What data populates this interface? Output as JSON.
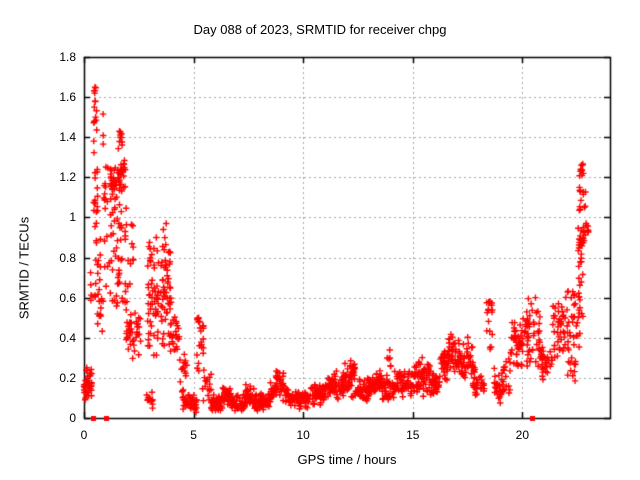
{
  "figure": {
    "background": "#ffffff",
    "border_color": "#000000"
  },
  "chart_data": {
    "type": "scatter",
    "title": "Day 088 of 2023, SRMTID for receiver chpg",
    "xlabel": "GPS time / hours",
    "ylabel": "SRMTID / TECUs",
    "xlim": [
      0,
      24
    ],
    "ylim": [
      0,
      1.8
    ],
    "xticks": [
      0,
      5,
      10,
      15,
      20
    ],
    "xtick_labels": [
      "0",
      "5",
      "10",
      "15",
      "20"
    ],
    "yticks": [
      0,
      0.2,
      0.4,
      0.6,
      0.8,
      1,
      1.2,
      1.4,
      1.6,
      1.8
    ],
    "ytick_labels": [
      "0",
      "0.2",
      "0.4",
      "0.6",
      "0.8",
      "1",
      "1.2",
      "1.4",
      "1.6",
      "1.8"
    ],
    "grid": true,
    "grid_color": "#a8a8a8",
    "marker": "plus-cross",
    "marker_color": "#ff0000",
    "series": [
      {
        "name": "SRMTID",
        "description": "Dense scatter of 30s SRMTID samples; clusters given as [x_start_hr, x_end_hr, y_min_TECU, y_max_TECU, n_points, distribution]",
        "clusters": [
          [
            0.0,
            0.1,
            0.1,
            0.2,
            8,
            "c"
          ],
          [
            0.05,
            0.35,
            0.08,
            0.27,
            30,
            "c"
          ],
          [
            0.28,
            0.42,
            0.55,
            0.75,
            5,
            "u"
          ],
          [
            0.42,
            0.58,
            1.3,
            1.66,
            12,
            "u"
          ],
          [
            0.44,
            0.66,
            0.95,
            1.3,
            16,
            "u"
          ],
          [
            0.5,
            0.75,
            0.6,
            0.95,
            16,
            "u"
          ],
          [
            0.55,
            0.85,
            0.42,
            0.6,
            10,
            "u"
          ],
          [
            0.85,
            1.1,
            0.5,
            1.55,
            20,
            "u"
          ],
          [
            1.55,
            1.75,
            1.32,
            1.46,
            8,
            "u"
          ],
          [
            1.2,
            1.9,
            1.05,
            1.3,
            55,
            "c"
          ],
          [
            1.2,
            1.95,
            0.8,
            1.05,
            24,
            "u"
          ],
          [
            1.15,
            2.05,
            0.55,
            0.8,
            28,
            "u"
          ],
          [
            1.9,
            2.6,
            0.28,
            0.58,
            40,
            "c"
          ],
          [
            2.05,
            2.25,
            0.6,
            1.0,
            8,
            "u"
          ],
          [
            2.8,
            3.15,
            0.04,
            0.14,
            16,
            "c"
          ],
          [
            2.9,
            3.4,
            0.25,
            0.92,
            55,
            "c"
          ],
          [
            3.5,
            4.0,
            0.3,
            0.98,
            60,
            "c"
          ],
          [
            4.0,
            4.35,
            0.28,
            0.52,
            20,
            "c"
          ],
          [
            4.3,
            4.7,
            0.12,
            0.32,
            16,
            "u"
          ],
          [
            4.5,
            5.15,
            0.02,
            0.12,
            45,
            "c"
          ],
          [
            5.15,
            5.45,
            0.12,
            0.5,
            24,
            "t"
          ],
          [
            5.45,
            5.8,
            0.08,
            0.3,
            15,
            "u"
          ],
          [
            5.8,
            6.3,
            0.03,
            0.12,
            45,
            "c"
          ],
          [
            6.3,
            6.7,
            0.05,
            0.16,
            35,
            "c"
          ],
          [
            6.7,
            7.35,
            0.03,
            0.12,
            50,
            "c"
          ],
          [
            7.35,
            7.75,
            0.06,
            0.17,
            35,
            "c"
          ],
          [
            7.75,
            8.5,
            0.03,
            0.13,
            60,
            "c"
          ],
          [
            8.5,
            8.78,
            0.08,
            0.18,
            20,
            "c"
          ],
          [
            8.75,
            9.1,
            0.1,
            0.26,
            30,
            "c"
          ],
          [
            9.08,
            9.35,
            0.06,
            0.18,
            16,
            "c"
          ],
          [
            9.35,
            10.2,
            0.04,
            0.14,
            60,
            "c"
          ],
          [
            10.2,
            11.0,
            0.06,
            0.17,
            60,
            "c"
          ],
          [
            11.0,
            11.85,
            0.08,
            0.24,
            65,
            "c"
          ],
          [
            11.85,
            12.35,
            0.1,
            0.3,
            45,
            "c"
          ],
          [
            12.35,
            13.1,
            0.08,
            0.2,
            60,
            "c"
          ],
          [
            13.1,
            13.6,
            0.1,
            0.25,
            40,
            "c"
          ],
          [
            13.6,
            14.15,
            0.08,
            0.22,
            38,
            "c"
          ],
          [
            13.82,
            14.0,
            0.24,
            0.34,
            6,
            "u"
          ],
          [
            14.15,
            15.0,
            0.1,
            0.25,
            60,
            "c"
          ],
          [
            15.0,
            15.8,
            0.1,
            0.33,
            60,
            "c"
          ],
          [
            15.8,
            16.25,
            0.1,
            0.24,
            35,
            "c"
          ],
          [
            16.25,
            16.6,
            0.18,
            0.35,
            28,
            "c"
          ],
          [
            16.6,
            17.0,
            0.2,
            0.43,
            32,
            "c"
          ],
          [
            17.0,
            17.75,
            0.15,
            0.43,
            55,
            "c"
          ],
          [
            17.75,
            18.3,
            0.08,
            0.28,
            32,
            "c"
          ],
          [
            18.35,
            18.65,
            0.25,
            0.58,
            18,
            "t"
          ],
          [
            18.7,
            19.45,
            0.05,
            0.3,
            45,
            "c"
          ],
          [
            19.45,
            20.05,
            0.22,
            0.52,
            45,
            "c"
          ],
          [
            20.1,
            20.85,
            0.22,
            0.62,
            50,
            "c"
          ],
          [
            20.85,
            21.35,
            0.18,
            0.38,
            30,
            "c"
          ],
          [
            21.35,
            21.95,
            0.28,
            0.58,
            38,
            "c"
          ],
          [
            21.95,
            22.45,
            0.18,
            0.65,
            36,
            "u"
          ],
          [
            22.45,
            22.62,
            0.35,
            0.55,
            8,
            "u"
          ],
          [
            22.5,
            22.78,
            0.5,
            0.8,
            16,
            "u"
          ],
          [
            22.55,
            22.82,
            0.8,
            1.0,
            26,
            "c"
          ],
          [
            22.6,
            22.88,
            1.0,
            1.22,
            14,
            "u"
          ],
          [
            22.63,
            22.76,
            1.22,
            1.27,
            5,
            "u"
          ],
          [
            22.85,
            23.05,
            0.85,
            1.0,
            8,
            "u"
          ]
        ],
        "notable_points": [
          [
            0.5,
            1.65
          ],
          [
            0.49,
            1.62
          ],
          [
            0.51,
            1.58
          ],
          [
            0.47,
            1.55
          ],
          [
            0.53,
            1.5
          ],
          [
            1.62,
            1.43
          ],
          [
            1.66,
            1.4
          ],
          [
            3.75,
            0.97
          ],
          [
            3.62,
            0.94
          ],
          [
            3.3,
            0.9
          ],
          [
            5.25,
            0.48
          ],
          [
            18.5,
            0.58
          ],
          [
            20.6,
            0.6
          ],
          [
            21.65,
            0.57
          ],
          [
            22.3,
            0.63
          ],
          [
            22.7,
            1.26
          ],
          [
            22.67,
            1.24
          ],
          [
            22.72,
            1.21
          ]
        ],
        "zero_value_squares_x": [
          0.42,
          1.0,
          20.45
        ]
      }
    ],
    "legend": null
  }
}
